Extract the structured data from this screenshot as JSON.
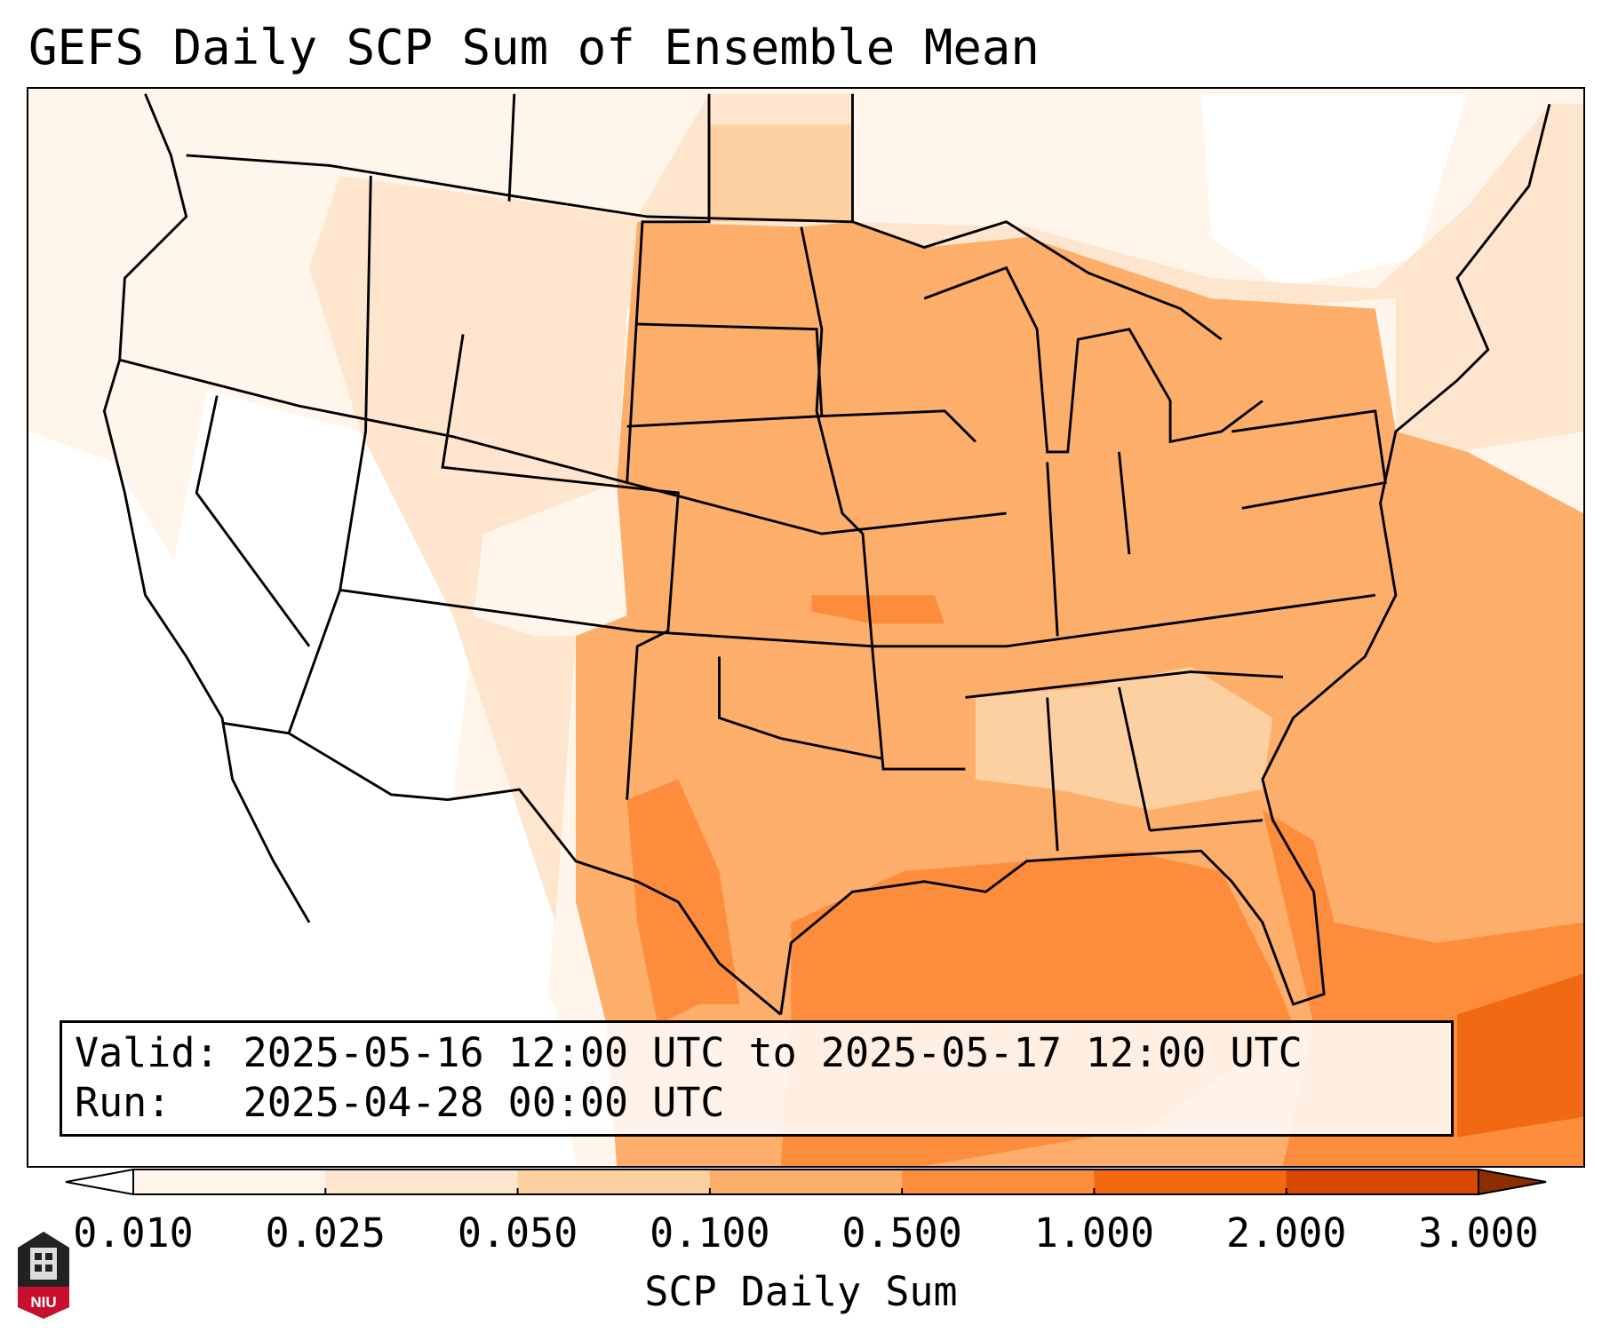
{
  "title": "GEFS Daily SCP Sum of Ensemble Mean",
  "info": {
    "valid_label": "Valid:",
    "valid_value": "2025-05-16 12:00 UTC to 2025-05-17 12:00 UTC",
    "run_label": "Run:",
    "run_value": "2025-04-28 00:00 UTC"
  },
  "colorbar": {
    "label": "SCP Daily Sum",
    "ticks": [
      "0.010",
      "0.025",
      "0.050",
      "0.100",
      "0.500",
      "1.000",
      "2.000",
      "3.000"
    ],
    "colors": [
      "#fff5eb",
      "#fee6ce",
      "#fdd0a2",
      "#fdae6b",
      "#fd8d3c",
      "#f16913",
      "#d94801",
      "#8c2d04"
    ]
  },
  "logo": {
    "text": "NIU"
  },
  "chart_data": {
    "type": "heatmap",
    "title": "GEFS Daily SCP Sum of Ensemble Mean",
    "colorbar_label": "SCP Daily Sum",
    "levels": [
      0.01,
      0.025,
      0.05,
      0.1,
      0.5,
      1.0,
      2.0,
      3.0
    ],
    "extend": "both",
    "region": "Contiguous United States",
    "summary": {
      "west": "below 0.025",
      "plains_midwest_east": "0.1 to 0.5",
      "gulf_of_mexico_and_south_texas": "0.5 to 1.0",
      "caribbean_bahamas": "1.0 to 2.0"
    }
  }
}
